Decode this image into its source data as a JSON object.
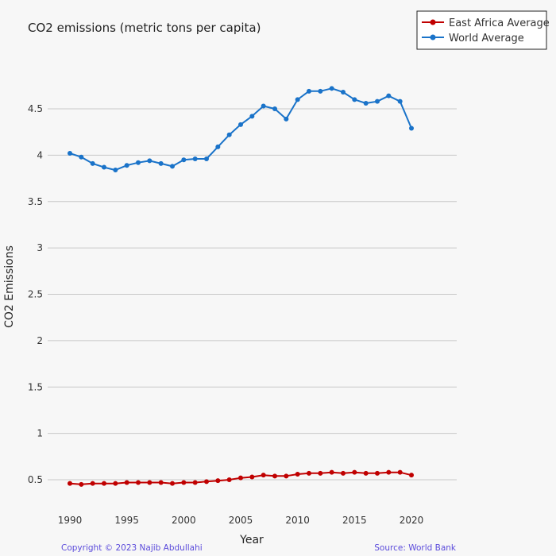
{
  "chart_data": {
    "type": "line",
    "title": "CO2 emissions (metric tons per capita)",
    "xlabel": "Year",
    "ylabel": "CO2 Emissions",
    "xlim": [
      1990,
      2020
    ],
    "ylim": [
      0.5,
      4.5
    ],
    "x_ticks": [
      "1990",
      "1995",
      "2000",
      "2005",
      "2010",
      "2015",
      "2020"
    ],
    "y_ticks": [
      "0.5",
      "1",
      "1.5",
      "2",
      "2.5",
      "3",
      "3.5",
      "4",
      "4.5"
    ],
    "grid": true,
    "legend_position": "top-right",
    "x": [
      1990,
      1991,
      1992,
      1993,
      1994,
      1995,
      1996,
      1997,
      1998,
      1999,
      2000,
      2001,
      2002,
      2003,
      2004,
      2005,
      2006,
      2007,
      2008,
      2009,
      2010,
      2011,
      2012,
      2013,
      2014,
      2015,
      2016,
      2017,
      2018,
      2019,
      2020
    ],
    "series": [
      {
        "name": "East Africa Average",
        "color": "#c00000",
        "values": [
          0.46,
          0.45,
          0.46,
          0.46,
          0.46,
          0.47,
          0.47,
          0.47,
          0.47,
          0.46,
          0.47,
          0.47,
          0.48,
          0.49,
          0.5,
          0.52,
          0.53,
          0.55,
          0.54,
          0.54,
          0.56,
          0.57,
          0.57,
          0.58,
          0.57,
          0.58,
          0.57,
          0.57,
          0.58,
          0.58,
          0.55
        ]
      },
      {
        "name": "World Average",
        "color": "#1a73c9",
        "values": [
          4.02,
          3.98,
          3.91,
          3.87,
          3.84,
          3.89,
          3.92,
          3.94,
          3.91,
          3.88,
          3.95,
          3.96,
          3.96,
          4.09,
          4.22,
          4.33,
          4.42,
          4.53,
          4.5,
          4.39,
          4.6,
          4.69,
          4.69,
          4.72,
          4.68,
          4.6,
          4.56,
          4.58,
          4.64,
          4.58,
          4.29
        ]
      }
    ]
  },
  "footer": {
    "copyright": "Copyright © 2023 Najib Abdullahi",
    "source": "Source: World Bank"
  }
}
